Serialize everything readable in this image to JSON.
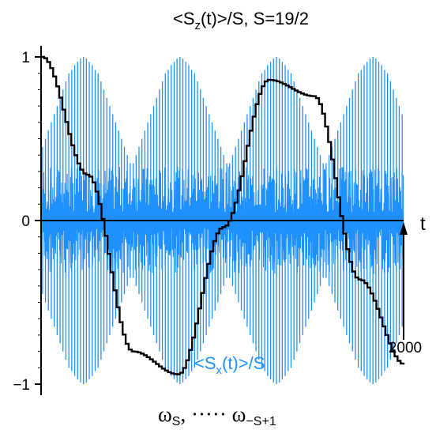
{
  "chart_data": {
    "type": "line",
    "title_parts": {
      "pre": "<S",
      "sub": "z",
      "post": "(t)>/S,  S=19/2"
    },
    "xlabel": "t",
    "x_end_label": "2000",
    "xlim": [
      0,
      2000
    ],
    "ylim": [
      -1,
      1
    ],
    "yticks": [
      {
        "value": 1,
        "label": "1"
      },
      {
        "value": 0,
        "label": "0"
      },
      {
        "value": -1,
        "label": "−1"
      }
    ],
    "bottom_label": {
      "w1": "ω",
      "w1_sub": "S",
      "mid": ", ····· ",
      "w2": "ω",
      "w2_sub": "−S+1"
    },
    "series": [
      {
        "label_parts": {
          "pre": "<S",
          "sub": "x",
          "post": "(t)>/S"
        },
        "color": "#1e90ff",
        "style": "fast-oscillation",
        "pulse_amplitudes": [
          0.45,
          0.5,
          0.55,
          0.6,
          0.65,
          0.7,
          0.75,
          0.8,
          0.85,
          0.9,
          0.92,
          0.95,
          0.97,
          0.99,
          1.0,
          0.99,
          0.97,
          0.95,
          0.92,
          0.9,
          0.85,
          0.8,
          0.75,
          0.7,
          0.65,
          0.6,
          0.55,
          0.5,
          0.45,
          0.4,
          0.35,
          0.35,
          0.4,
          0.45,
          0.5,
          0.55,
          0.6,
          0.65,
          0.7,
          0.75,
          0.8,
          0.85,
          0.9,
          0.92,
          0.95,
          0.97,
          0.99,
          1.0,
          0.99,
          0.97,
          0.95,
          0.92,
          0.9,
          0.85,
          0.8,
          0.75,
          0.7,
          0.65,
          0.6,
          0.55,
          0.5,
          0.45,
          0.4,
          0.35,
          0.35,
          0.4,
          0.45,
          0.5,
          0.55,
          0.6,
          0.65,
          0.7,
          0.75,
          0.8,
          0.85,
          0.9,
          0.92,
          0.95,
          0.97,
          0.99,
          1.0,
          0.99,
          0.97,
          0.95,
          0.92,
          0.9,
          0.85,
          0.8,
          0.75,
          0.7,
          0.65,
          0.6,
          0.55,
          0.5,
          0.45,
          0.4,
          0.35,
          0.35,
          0.4,
          0.45,
          0.5,
          0.55,
          0.6,
          0.65,
          0.7,
          0.75,
          0.8,
          0.85,
          0.9,
          0.92,
          0.95,
          0.97,
          0.99,
          1.0,
          0.99,
          0.97,
          0.95,
          0.92,
          0.9,
          0.85,
          0.8,
          0.75,
          0.7,
          0.65
        ]
      },
      {
        "name": "<Sz(t)>/S",
        "color": "#000000",
        "style": "staircase",
        "x": [
          0,
          250,
          500,
          750,
          1000,
          1250,
          1500,
          1750,
          2000
        ],
        "y": [
          1.0,
          0.28,
          -0.8,
          -0.94,
          -0.04,
          0.86,
          0.76,
          -0.36,
          -0.88
        ]
      }
    ]
  }
}
